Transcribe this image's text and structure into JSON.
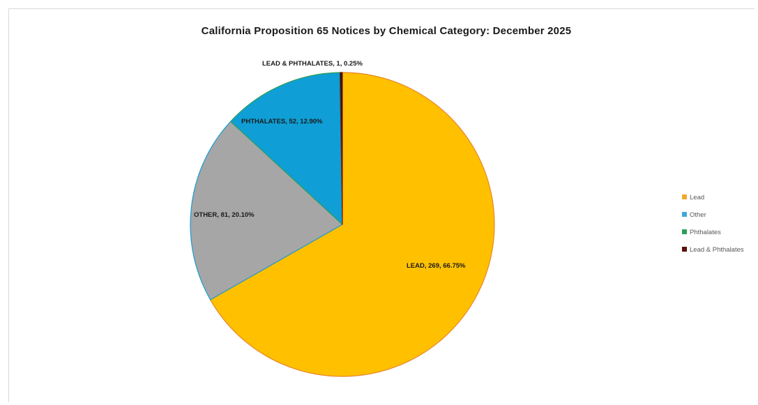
{
  "chart_data": {
    "type": "pie",
    "title": "California Proposition 65 Notices by Chemical Category: December 2025",
    "slices": [
      {
        "label": "LEAD, 269, 66.75%",
        "category": "Lead",
        "value": 269,
        "percent": 66.75,
        "color": "#FFC000",
        "edge": "#E8862A"
      },
      {
        "label": "OTHER, 81, 20.10%",
        "category": "Other",
        "value": 81,
        "percent": 20.1,
        "color": "#A6A6A6",
        "edge": "#1B9BD1"
      },
      {
        "label": "PHTHALATES, 52, 12.90%",
        "category": "Phthalates",
        "value": 52,
        "percent": 12.9,
        "color": "#0F9ED5",
        "edge": "#2E9E5B"
      },
      {
        "label": "LEAD & PHTHALATES, 1, 0.25%",
        "category": "Lead & Phthalates",
        "value": 1,
        "percent": 0.25,
        "color": "#1a1a1a",
        "edge": "#7a1f10"
      }
    ],
    "legend": {
      "placement": "right",
      "items": [
        {
          "label": "Lead",
          "color": "#F0A830"
        },
        {
          "label": "Other",
          "color": "#3FA9D9"
        },
        {
          "label": "Phthalates",
          "color": "#2E9E5B"
        },
        {
          "label": "Lead & Phthalates",
          "color": "#5a1208"
        }
      ]
    }
  }
}
